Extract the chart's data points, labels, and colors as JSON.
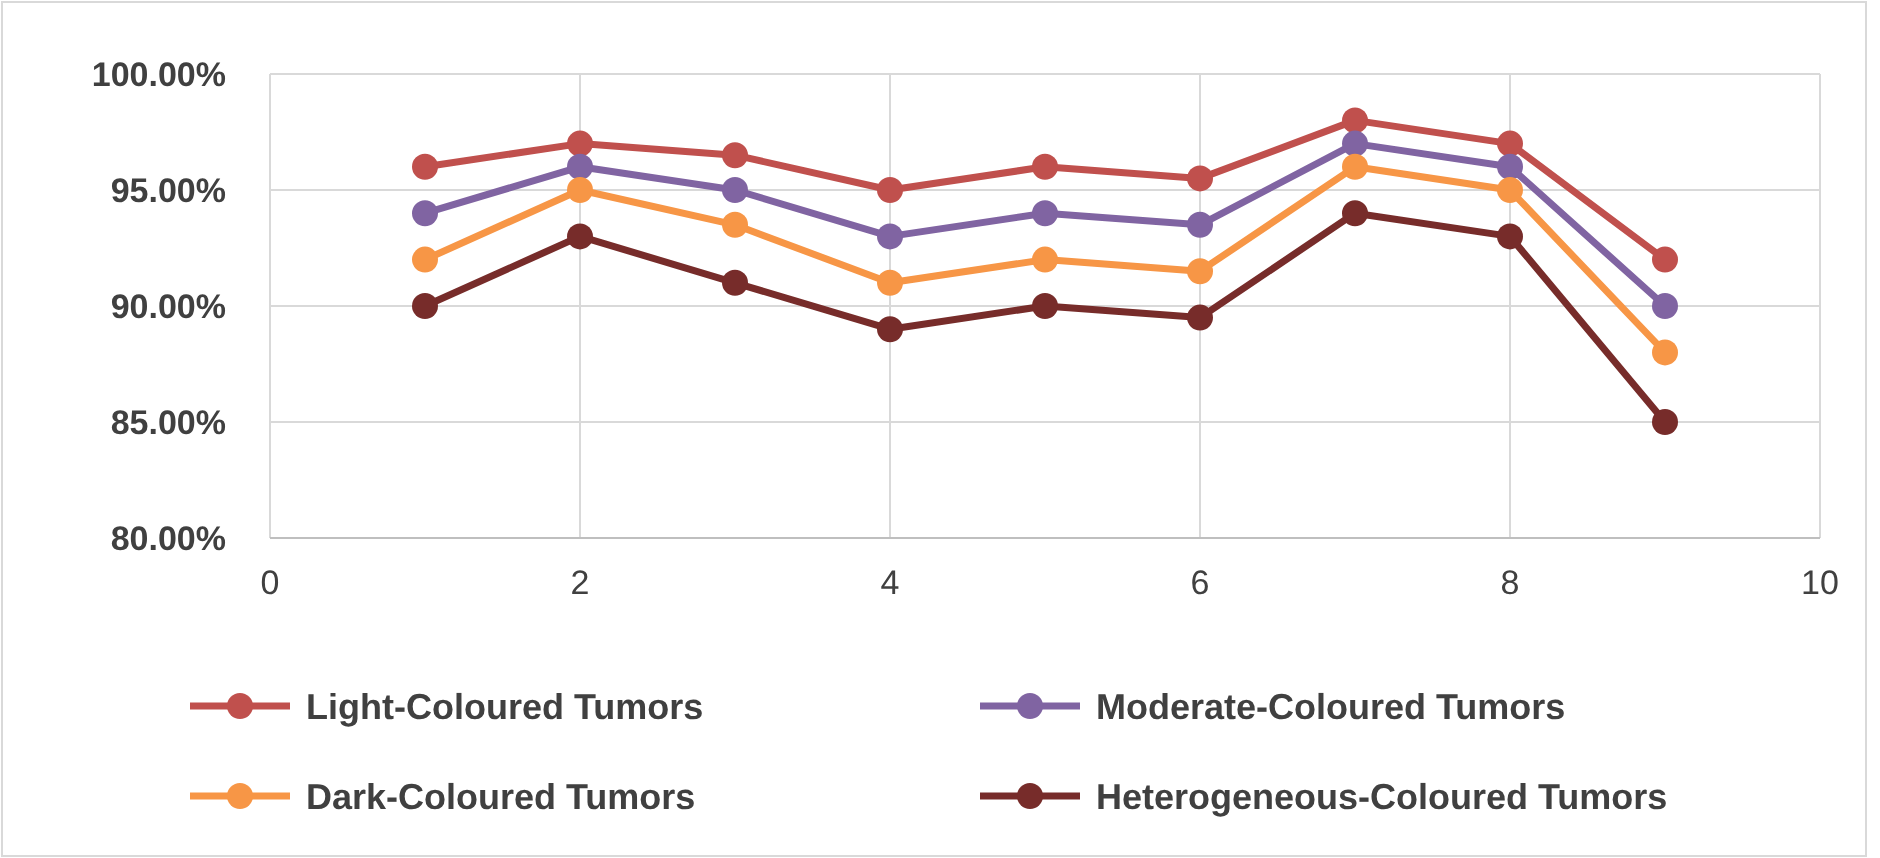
{
  "chart_data": {
    "type": "line",
    "xlim": [
      0,
      10
    ],
    "xticks": [
      0,
      2,
      4,
      6,
      8,
      10
    ],
    "ylim": [
      80,
      100
    ],
    "yticks": [
      {
        "value": 80,
        "label": "80.00%"
      },
      {
        "value": 85,
        "label": "85.00%"
      },
      {
        "value": 90,
        "label": "90.00%"
      },
      {
        "value": 95,
        "label": "95.00%"
      },
      {
        "value": 100,
        "label": "100.00%"
      }
    ],
    "x": [
      1,
      2,
      3,
      4,
      5,
      6,
      7,
      8,
      9
    ],
    "grid": true,
    "legend": "bottom",
    "marker": "circle",
    "line_style": "solid",
    "series": [
      {
        "name": "Light-Coloured Tumors",
        "color": "#c0504d",
        "values": [
          96,
          97,
          96.5,
          95,
          96,
          95.5,
          98,
          97,
          92
        ]
      },
      {
        "name": "Moderate-Coloured Tumors",
        "color": "#8064a2",
        "values": [
          94,
          96,
          95,
          93,
          94,
          93.5,
          97,
          96,
          90
        ]
      },
      {
        "name": "Dark-Coloured Tumors",
        "color": "#f79646",
        "values": [
          92,
          95,
          93.5,
          91,
          92,
          91.5,
          96,
          95,
          88
        ]
      },
      {
        "name": "Heterogeneous-Coloured Tumors",
        "color": "#772c2a",
        "values": [
          90,
          93,
          91,
          89,
          90,
          89.5,
          94,
          93,
          85
        ]
      }
    ]
  }
}
